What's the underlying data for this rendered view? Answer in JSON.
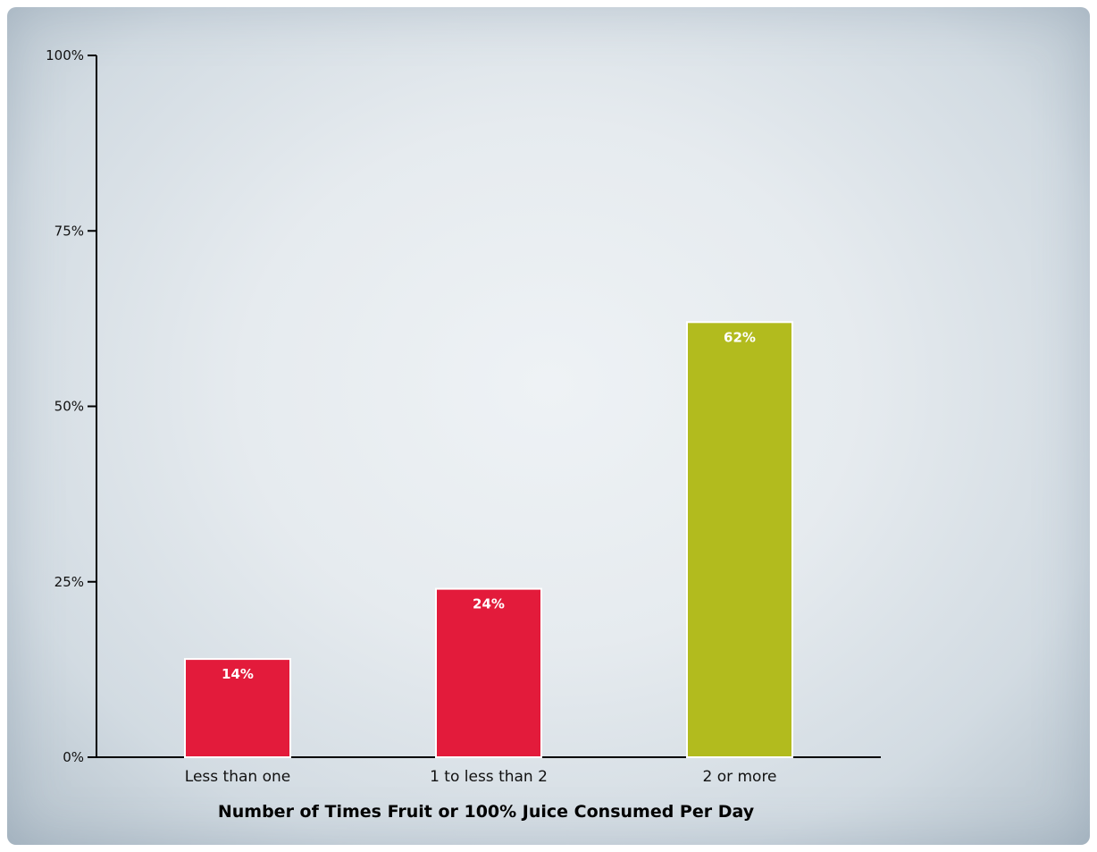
{
  "chart_data": {
    "type": "bar",
    "categories": [
      "Less than one",
      "1 to less than 2",
      "2 or more"
    ],
    "values": [
      14,
      24,
      62
    ],
    "value_labels": [
      "14%",
      "24%",
      "62%"
    ],
    "bar_colors": [
      "#e31b3b",
      "#e31b3b",
      "#b2bb1e"
    ],
    "xlabel": "Number of Times Fruit or 100% Juice Consumed Per Day",
    "ylabel": "",
    "ylim": [
      0,
      100
    ],
    "yticks": [
      0,
      25,
      50,
      75,
      100
    ],
    "ytick_labels": [
      "0%",
      "25%",
      "50%",
      "75%",
      "100%"
    ],
    "grid": false,
    "legend": "none"
  }
}
